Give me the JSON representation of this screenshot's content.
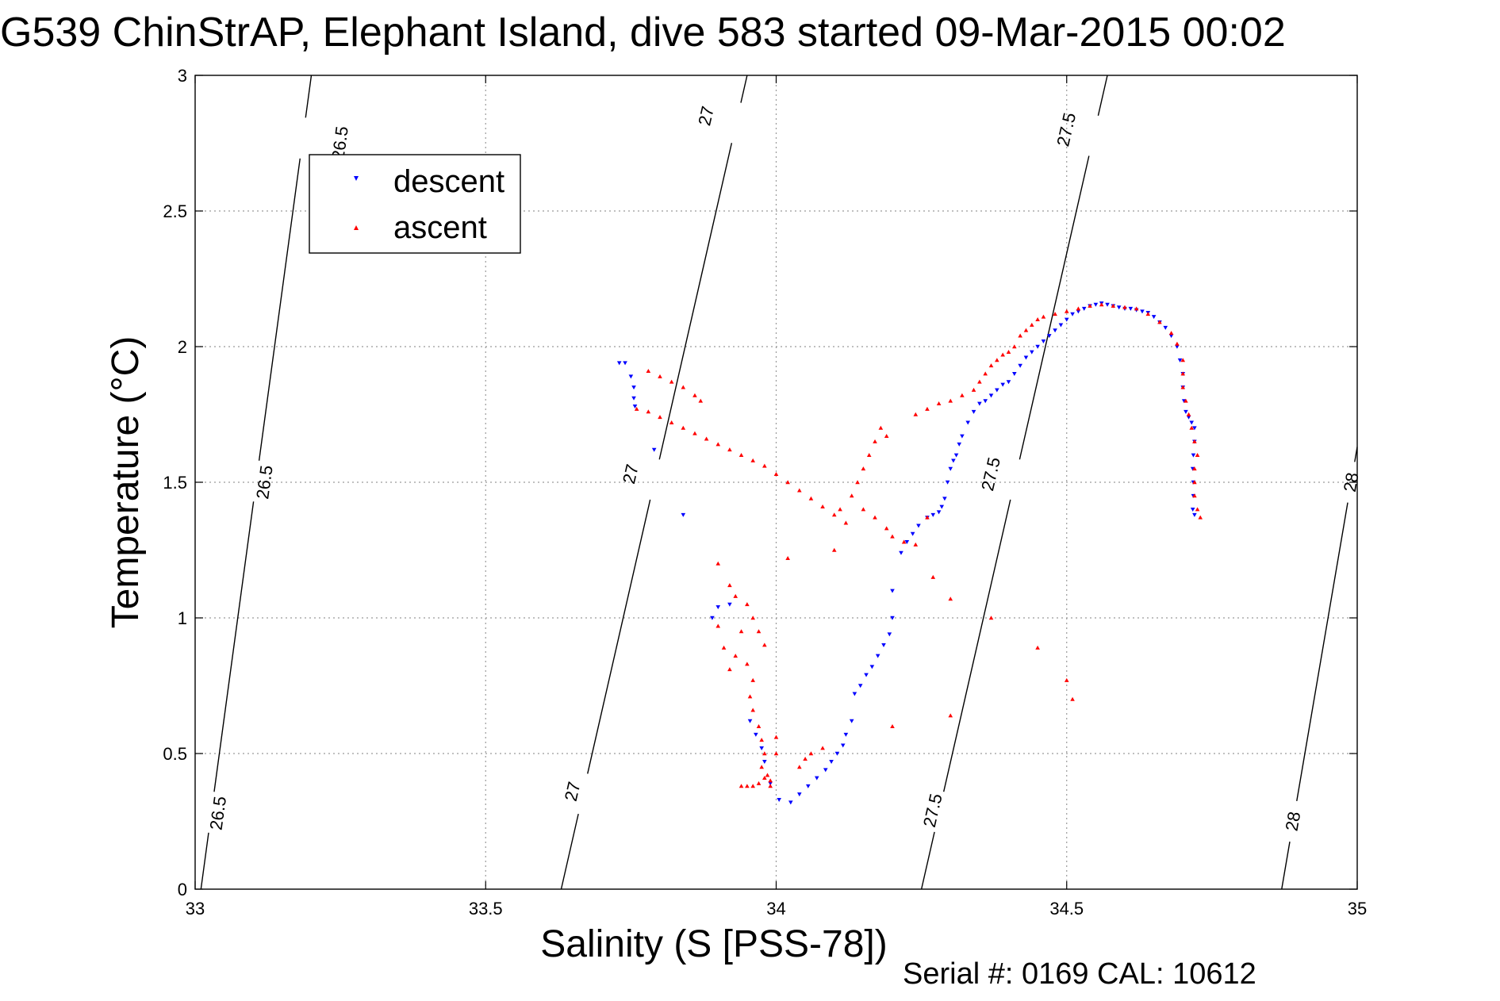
{
  "title": "G539 ChinStrAP, Elephant Island, dive 583 started 09-Mar-2015 00:02",
  "footer": "Serial #: 0169 CAL: 10612",
  "colors": {
    "descent": "#0000ff",
    "ascent": "#ff0000",
    "contour": "#000000",
    "grid": "#9a9a9a"
  },
  "chart_data": {
    "type": "scatter",
    "xlabel": "Salinity (S [PSS-78])",
    "ylabel": "Temperature (°C)",
    "xlim": [
      33,
      35
    ],
    "ylim": [
      0,
      3
    ],
    "xticks": [
      "33",
      "33.5",
      "34",
      "34.5",
      "35"
    ],
    "yticks": [
      "0",
      "0.5",
      "1",
      "1.5",
      "2",
      "2.5",
      "3"
    ],
    "grid": true,
    "legend_position": "top-left",
    "density_contours": [
      {
        "level": "26.5",
        "points": [
          [
            33.01,
            0.0
          ],
          [
            33.2,
            3.0
          ]
        ],
        "labels": [
          [
            33.04,
            0.28
          ],
          [
            33.12,
            1.5
          ],
          [
            33.25,
            2.75
          ]
        ]
      },
      {
        "level": "27",
        "points": [
          [
            33.63,
            0.0
          ],
          [
            33.95,
            3.0
          ]
        ],
        "labels": [
          [
            33.65,
            0.36
          ],
          [
            33.75,
            1.53
          ],
          [
            33.88,
            2.85
          ]
        ]
      },
      {
        "level": "27.5",
        "points": [
          [
            34.25,
            0.0
          ],
          [
            34.57,
            3.0
          ]
        ],
        "labels": [
          [
            34.27,
            0.29
          ],
          [
            34.37,
            1.53
          ],
          [
            34.5,
            2.8
          ]
        ]
      },
      {
        "level": "28",
        "points": [
          [
            34.87,
            0.0
          ],
          [
            35.0,
            1.63
          ]
        ],
        "labels": [
          [
            34.89,
            0.25
          ],
          [
            34.99,
            1.5
          ]
        ]
      }
    ],
    "series": [
      {
        "name": "descent",
        "marker": "triangle-down",
        "color": "#0000ff",
        "points": [
          [
            33.73,
            1.94
          ],
          [
            33.74,
            1.94
          ],
          [
            33.75,
            1.89
          ],
          [
            33.755,
            1.85
          ],
          [
            33.755,
            1.81
          ],
          [
            33.757,
            1.78
          ],
          [
            33.79,
            1.62
          ],
          [
            33.84,
            1.38
          ],
          [
            33.89,
            1.0
          ],
          [
            33.9,
            1.04
          ],
          [
            33.92,
            1.05
          ],
          [
            33.955,
            0.62
          ],
          [
            33.965,
            0.57
          ],
          [
            33.975,
            0.52
          ],
          [
            33.98,
            0.47
          ],
          [
            33.99,
            0.39
          ],
          [
            34.005,
            0.33
          ],
          [
            34.025,
            0.32
          ],
          [
            34.04,
            0.35
          ],
          [
            34.055,
            0.38
          ],
          [
            34.07,
            0.41
          ],
          [
            34.085,
            0.44
          ],
          [
            34.095,
            0.47
          ],
          [
            34.105,
            0.5
          ],
          [
            34.115,
            0.53
          ],
          [
            34.12,
            0.57
          ],
          [
            34.13,
            0.62
          ],
          [
            34.135,
            0.72
          ],
          [
            34.145,
            0.75
          ],
          [
            34.155,
            0.79
          ],
          [
            34.165,
            0.82
          ],
          [
            34.175,
            0.86
          ],
          [
            34.185,
            0.9
          ],
          [
            34.195,
            0.94
          ],
          [
            34.2,
            1.0
          ],
          [
            34.2,
            1.1
          ],
          [
            34.215,
            1.24
          ],
          [
            34.225,
            1.28
          ],
          [
            34.235,
            1.31
          ],
          [
            34.245,
            1.34
          ],
          [
            34.26,
            1.37
          ],
          [
            34.27,
            1.38
          ],
          [
            34.28,
            1.39
          ],
          [
            34.285,
            1.41
          ],
          [
            34.29,
            1.44
          ],
          [
            34.295,
            1.5
          ],
          [
            34.3,
            1.55
          ],
          [
            34.305,
            1.58
          ],
          [
            34.31,
            1.6
          ],
          [
            34.315,
            1.64
          ],
          [
            34.32,
            1.67
          ],
          [
            34.33,
            1.72
          ],
          [
            34.34,
            1.76
          ],
          [
            34.35,
            1.79
          ],
          [
            34.36,
            1.8
          ],
          [
            34.37,
            1.82
          ],
          [
            34.38,
            1.84
          ],
          [
            34.39,
            1.86
          ],
          [
            34.4,
            1.87
          ],
          [
            34.41,
            1.9
          ],
          [
            34.42,
            1.93
          ],
          [
            34.43,
            1.96
          ],
          [
            34.44,
            1.98
          ],
          [
            34.45,
            2.0
          ],
          [
            34.46,
            2.02
          ],
          [
            34.47,
            2.04
          ],
          [
            34.48,
            2.06
          ],
          [
            34.49,
            2.08
          ],
          [
            34.5,
            2.1
          ],
          [
            34.51,
            2.12
          ],
          [
            34.52,
            2.13
          ],
          [
            34.53,
            2.14
          ],
          [
            34.54,
            2.15
          ],
          [
            34.55,
            2.155
          ],
          [
            34.56,
            2.16
          ],
          [
            34.57,
            2.155
          ],
          [
            34.58,
            2.15
          ],
          [
            34.59,
            2.145
          ],
          [
            34.6,
            2.14
          ],
          [
            34.61,
            2.14
          ],
          [
            34.62,
            2.135
          ],
          [
            34.63,
            2.13
          ],
          [
            34.64,
            2.125
          ],
          [
            34.65,
            2.11
          ],
          [
            34.66,
            2.09
          ],
          [
            34.67,
            2.07
          ],
          [
            34.68,
            2.04
          ],
          [
            34.69,
            2.0
          ],
          [
            34.695,
            1.95
          ],
          [
            34.7,
            1.9
          ],
          [
            34.7,
            1.85
          ],
          [
            34.702,
            1.8
          ],
          [
            34.705,
            1.76
          ],
          [
            34.71,
            1.74
          ],
          [
            34.715,
            1.72
          ],
          [
            34.72,
            1.7
          ],
          [
            34.72,
            1.65
          ],
          [
            34.718,
            1.6
          ],
          [
            34.717,
            1.55
          ],
          [
            34.718,
            1.5
          ],
          [
            34.718,
            1.45
          ],
          [
            34.717,
            1.4
          ],
          [
            34.72,
            1.38
          ]
        ]
      },
      {
        "name": "ascent",
        "marker": "triangle-up",
        "color": "#ff0000",
        "points": [
          [
            33.76,
            1.77
          ],
          [
            33.78,
            1.76
          ],
          [
            33.8,
            1.74
          ],
          [
            33.82,
            1.72
          ],
          [
            33.84,
            1.7
          ],
          [
            33.86,
            1.68
          ],
          [
            33.88,
            1.66
          ],
          [
            33.9,
            1.64
          ],
          [
            33.92,
            1.62
          ],
          [
            33.94,
            1.6
          ],
          [
            33.96,
            1.58
          ],
          [
            33.98,
            1.56
          ],
          [
            34.0,
            1.53
          ],
          [
            34.02,
            1.5
          ],
          [
            34.04,
            1.47
          ],
          [
            34.06,
            1.44
          ],
          [
            34.08,
            1.41
          ],
          [
            34.1,
            1.38
          ],
          [
            34.12,
            1.35
          ],
          [
            33.78,
            1.91
          ],
          [
            33.8,
            1.89
          ],
          [
            33.82,
            1.87
          ],
          [
            33.84,
            1.85
          ],
          [
            33.86,
            1.82
          ],
          [
            33.87,
            1.8
          ],
          [
            33.9,
            1.2
          ],
          [
            33.92,
            1.12
          ],
          [
            33.93,
            1.08
          ],
          [
            33.9,
            0.97
          ],
          [
            33.91,
            0.89
          ],
          [
            33.92,
            0.81
          ],
          [
            33.93,
            0.86
          ],
          [
            33.94,
            0.95
          ],
          [
            33.95,
            1.05
          ],
          [
            33.96,
            1.0
          ],
          [
            33.97,
            0.95
          ],
          [
            33.98,
            0.9
          ],
          [
            33.95,
            0.83
          ],
          [
            33.96,
            0.77
          ],
          [
            33.955,
            0.71
          ],
          [
            33.96,
            0.66
          ],
          [
            33.97,
            0.6
          ],
          [
            33.975,
            0.55
          ],
          [
            33.98,
            0.5
          ],
          [
            33.975,
            0.45
          ],
          [
            33.985,
            0.42
          ],
          [
            33.99,
            0.4
          ],
          [
            34.0,
            0.56
          ],
          [
            34.0,
            0.5
          ],
          [
            33.94,
            0.38
          ],
          [
            33.95,
            0.38
          ],
          [
            33.96,
            0.38
          ],
          [
            33.97,
            0.39
          ],
          [
            33.98,
            0.41
          ],
          [
            33.99,
            0.38
          ],
          [
            34.04,
            0.45
          ],
          [
            34.05,
            0.48
          ],
          [
            34.06,
            0.5
          ],
          [
            34.08,
            0.52
          ],
          [
            34.02,
            1.22
          ],
          [
            34.1,
            1.25
          ],
          [
            34.11,
            1.4
          ],
          [
            34.13,
            1.45
          ],
          [
            34.15,
            1.4
          ],
          [
            34.17,
            1.37
          ],
          [
            34.19,
            1.33
          ],
          [
            34.14,
            1.5
          ],
          [
            34.15,
            1.55
          ],
          [
            34.16,
            1.6
          ],
          [
            34.17,
            1.65
          ],
          [
            34.18,
            1.7
          ],
          [
            34.19,
            1.67
          ],
          [
            34.2,
            1.3
          ],
          [
            34.22,
            1.28
          ],
          [
            34.24,
            1.27
          ],
          [
            34.26,
            1.37
          ],
          [
            34.27,
            1.15
          ],
          [
            34.24,
            1.75
          ],
          [
            34.26,
            1.77
          ],
          [
            34.28,
            1.79
          ],
          [
            34.3,
            1.8
          ],
          [
            34.32,
            1.82
          ],
          [
            34.34,
            1.84
          ],
          [
            34.35,
            1.87
          ],
          [
            34.36,
            1.9
          ],
          [
            34.37,
            1.93
          ],
          [
            34.38,
            1.95
          ],
          [
            34.39,
            1.97
          ],
          [
            34.4,
            1.98
          ],
          [
            34.41,
            2.0
          ],
          [
            34.42,
            2.04
          ],
          [
            34.43,
            2.06
          ],
          [
            34.44,
            2.08
          ],
          [
            34.45,
            2.1
          ],
          [
            34.46,
            2.11
          ],
          [
            34.48,
            2.12
          ],
          [
            34.5,
            2.13
          ],
          [
            34.52,
            2.14
          ],
          [
            34.54,
            2.15
          ],
          [
            34.56,
            2.155
          ],
          [
            34.58,
            2.15
          ],
          [
            34.6,
            2.145
          ],
          [
            34.62,
            2.14
          ],
          [
            34.64,
            2.12
          ],
          [
            34.66,
            2.09
          ],
          [
            34.68,
            2.05
          ],
          [
            34.69,
            2.01
          ],
          [
            34.7,
            1.95
          ],
          [
            34.7,
            1.9
          ],
          [
            34.7,
            1.85
          ],
          [
            34.705,
            1.8
          ],
          [
            34.71,
            1.75
          ],
          [
            34.715,
            1.7
          ],
          [
            34.72,
            1.65
          ],
          [
            34.725,
            1.6
          ],
          [
            34.72,
            1.55
          ],
          [
            34.72,
            1.5
          ],
          [
            34.72,
            1.45
          ],
          [
            34.725,
            1.4
          ],
          [
            34.73,
            1.37
          ],
          [
            34.3,
            1.07
          ],
          [
            34.37,
            1.0
          ],
          [
            34.45,
            0.89
          ],
          [
            34.5,
            0.77
          ],
          [
            34.51,
            0.7
          ],
          [
            34.3,
            0.64
          ],
          [
            34.2,
            0.6
          ]
        ]
      }
    ]
  }
}
